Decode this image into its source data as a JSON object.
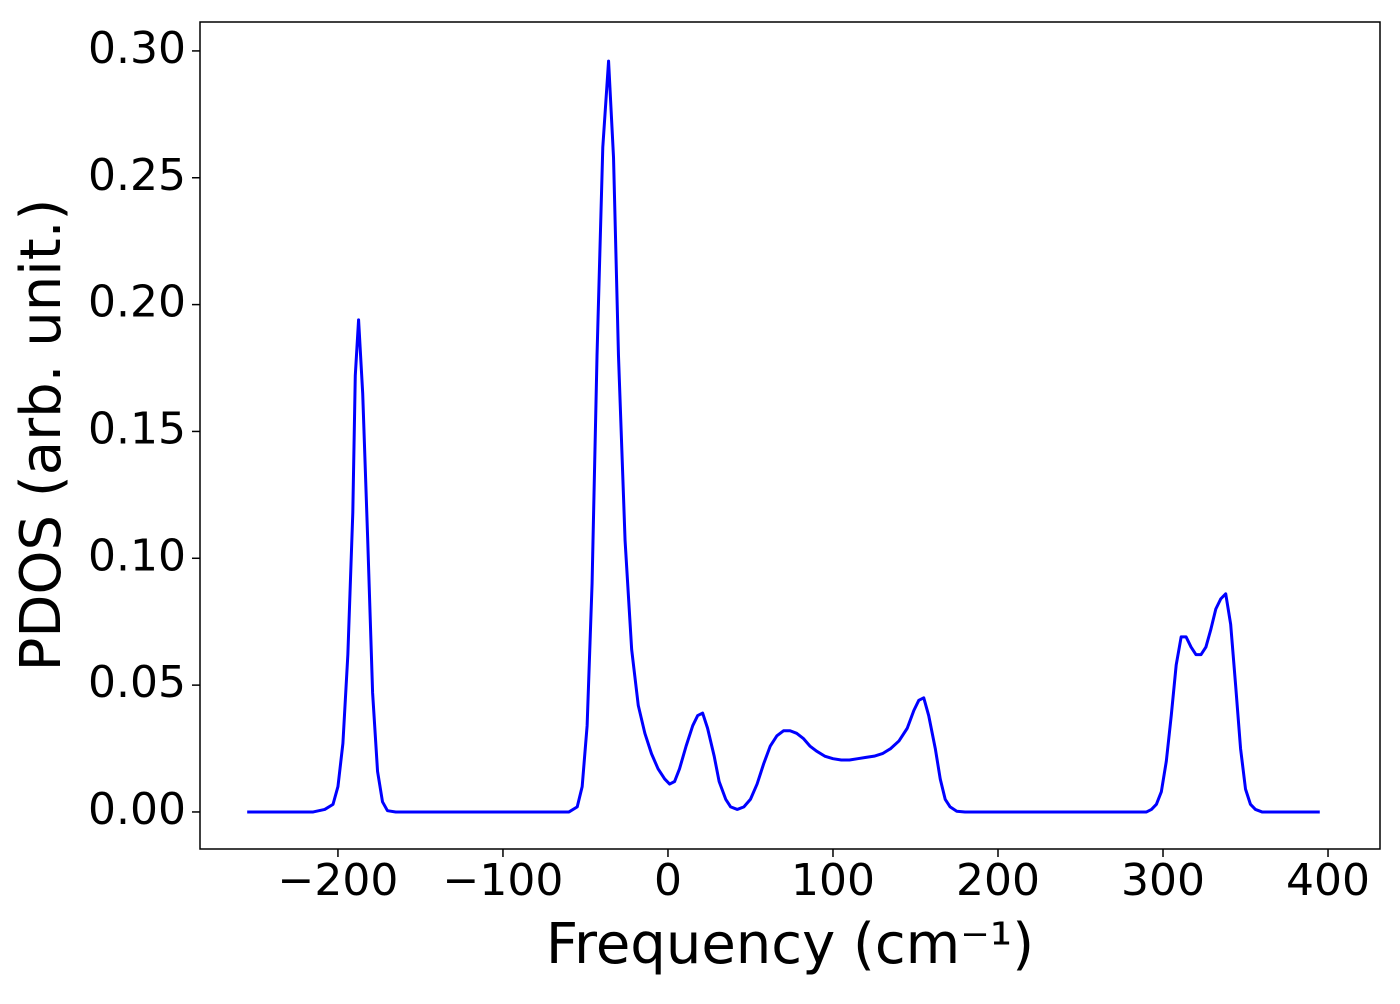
{
  "chart_data": {
    "type": "line",
    "x_label": "Frequency (cm⁻¹)",
    "y_label": "PDOS (arb. unit.)",
    "xlim": [
      -283.6,
      431.5
    ],
    "ylim": [
      -0.0146,
      0.3114
    ],
    "xticks": [
      {
        "value": -200,
        "label": "−200"
      },
      {
        "value": -100,
        "label": "−100"
      },
      0,
      100,
      200,
      300,
      400
    ],
    "yticks": [
      {
        "value": 0,
        "label": "0.00"
      },
      {
        "value": 0.05,
        "label": "0.05"
      },
      {
        "value": 0.1,
        "label": "0.10"
      },
      {
        "value": 0.15,
        "label": "0.15"
      },
      {
        "value": 0.2,
        "label": "0.20"
      },
      {
        "value": 0.25,
        "label": "0.25"
      },
      {
        "value": 0.3,
        "label": "0.30"
      }
    ],
    "grid": false,
    "series": [
      {
        "color": "#0000ff",
        "x": [
          -255,
          -215,
          -208,
          -203,
          -200,
          -197,
          -194,
          -191,
          -189.5,
          -187.5,
          -185,
          -182,
          -179,
          -176,
          -173,
          -170,
          -165,
          -60,
          -55,
          -52,
          -49,
          -46,
          -43,
          -39.5,
          -36,
          -33,
          -30,
          -26,
          -22,
          -18,
          -14,
          -10,
          -6,
          -2,
          1,
          4,
          7,
          11,
          15,
          18,
          21,
          24,
          28,
          31,
          35,
          38,
          42,
          46,
          50,
          54,
          58,
          62,
          66,
          70,
          74,
          78,
          82,
          86,
          90,
          95,
          100,
          105,
          110,
          115,
          120,
          125,
          130,
          135,
          140,
          145,
          149,
          152,
          155,
          158,
          162,
          165,
          168,
          171,
          175,
          180,
          290,
          293,
          296,
          299,
          302,
          305,
          308,
          311,
          314,
          317,
          320,
          323,
          326,
          329,
          332,
          335,
          338,
          341,
          344,
          347,
          350,
          353,
          356,
          360,
          395
        ],
        "values": [
          0,
          0,
          0.001,
          0.003,
          0.01,
          0.027,
          0.062,
          0.118,
          0.172,
          0.194,
          0.165,
          0.108,
          0.047,
          0.016,
          0.004,
          0.0005,
          0,
          0,
          0.002,
          0.01,
          0.034,
          0.09,
          0.18,
          0.262,
          0.296,
          0.258,
          0.18,
          0.107,
          0.064,
          0.042,
          0.031,
          0.023,
          0.017,
          0.013,
          0.011,
          0.012,
          0.017,
          0.026,
          0.034,
          0.038,
          0.039,
          0.033,
          0.022,
          0.012,
          0.005,
          0.002,
          0.001,
          0.002,
          0.005,
          0.011,
          0.019,
          0.026,
          0.03,
          0.032,
          0.032,
          0.031,
          0.029,
          0.026,
          0.024,
          0.022,
          0.021,
          0.0205,
          0.0205,
          0.021,
          0.0215,
          0.022,
          0.023,
          0.025,
          0.028,
          0.033,
          0.04,
          0.044,
          0.045,
          0.038,
          0.025,
          0.013,
          0.005,
          0.002,
          0.0003,
          0,
          0,
          0.001,
          0.003,
          0.008,
          0.02,
          0.038,
          0.058,
          0.069,
          0.069,
          0.065,
          0.062,
          0.062,
          0.065,
          0.072,
          0.08,
          0.084,
          0.086,
          0.074,
          0.05,
          0.025,
          0.009,
          0.003,
          0.001,
          0,
          0
        ]
      }
    ]
  }
}
